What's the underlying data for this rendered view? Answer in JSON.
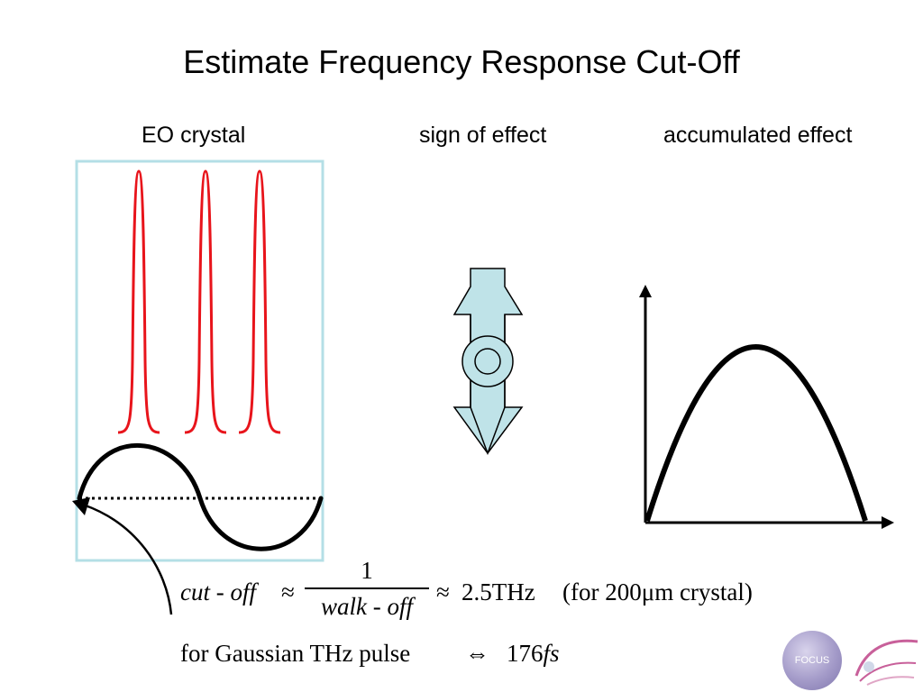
{
  "slide": {
    "title": "Estimate Frequency Response Cut-Off",
    "labels": {
      "eo_crystal": "EO crystal",
      "sign_of_effect": "sign of effect",
      "accumulated_effect": "accumulated effect"
    }
  },
  "formula1": {
    "lhs": "cut - off",
    "approx1": "≈",
    "numerator": "1",
    "denominator": "walk - off",
    "approx2": "≈",
    "value": "2.5THz",
    "note": "(for 200μm crystal)"
  },
  "formula2": {
    "prefix": "for Gaussian THz pulse",
    "equiv": "⇔",
    "value": "176",
    "unit": "fs"
  },
  "logos": {
    "left": "FOCUS"
  },
  "colors": {
    "pulse": "#e8141b",
    "crystal_border": "#b4dfe6",
    "arrow_fill": "#bfe3e8",
    "curve": "#000000"
  }
}
